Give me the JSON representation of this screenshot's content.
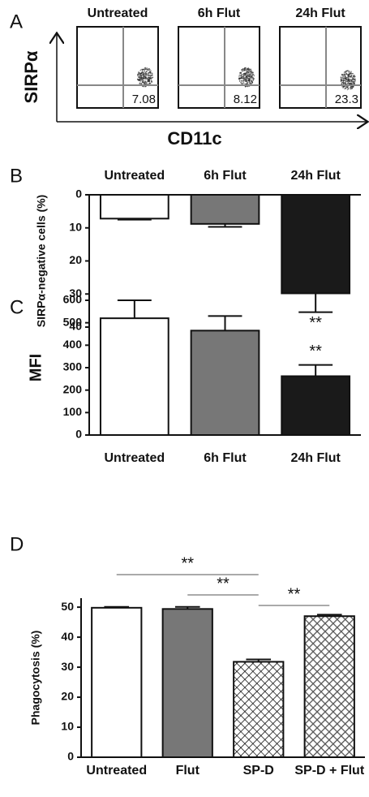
{
  "chart_data": [
    {
      "type": "flow",
      "panel_label": "A",
      "titles": [
        "Untreated",
        "6h Flut",
        "24h Flut"
      ],
      "values": [
        7.08,
        8.12,
        23.3
      ],
      "xlabel": "CD11c",
      "ylabel": "SIRPα"
    },
    {
      "type": "bar",
      "panel_label": "B",
      "ylabel": "SIRPα-negative cells (%)",
      "inverted": true,
      "categories": [
        "Untreated",
        "6h Flut",
        "24h Flut"
      ],
      "values": [
        7.2,
        8.8,
        29.8
      ],
      "errors": [
        0.3,
        0.9,
        5.7
      ],
      "colors": [
        "#ffffff",
        "#777777",
        "#1a1a1a"
      ],
      "bar_annotations": [
        null,
        null,
        "**"
      ],
      "ylim": [
        0,
        40
      ],
      "yticks": [
        0,
        10,
        20,
        30,
        40
      ]
    },
    {
      "type": "bar",
      "panel_label": "C",
      "ylabel": "MFI",
      "categories": [
        "Untreated",
        "6h Flut",
        "24h Flut"
      ],
      "values": [
        520,
        465,
        262
      ],
      "errors": [
        80,
        65,
        50
      ],
      "colors": [
        "#ffffff",
        "#777777",
        "#1a1a1a"
      ],
      "bar_annotations": [
        null,
        null,
        "**"
      ],
      "ylim": [
        0,
        600
      ],
      "yticks": [
        0,
        100,
        200,
        300,
        400,
        500,
        600
      ]
    },
    {
      "type": "bar",
      "panel_label": "D",
      "ylabel": "Phagocytosis (%)",
      "categories": [
        "Untreated",
        "Flut",
        "SP-D",
        "SP-D + Flut"
      ],
      "values": [
        49.8,
        49.4,
        31.8,
        47.0
      ],
      "errors": [
        0.3,
        0.7,
        0.8,
        0.5
      ],
      "colors": [
        "#ffffff",
        "#777777",
        "#ffffff",
        "#777777"
      ],
      "hatch": [
        false,
        false,
        true,
        true
      ],
      "brackets": [
        "**",
        "**",
        "**"
      ],
      "ylim": [
        0,
        53
      ],
      "yticks": [
        0,
        10,
        20,
        30,
        40,
        50
      ]
    }
  ]
}
